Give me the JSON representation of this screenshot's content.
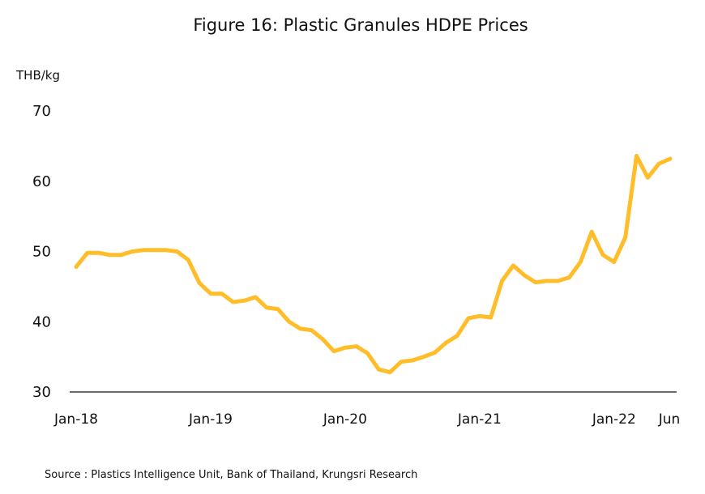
{
  "chart_data": {
    "type": "line",
    "title": "Figure 16: Plastic Granules HDPE Prices",
    "ylabel": "THB/kg",
    "xlabel": "",
    "source": "Source : Plastics Intelligence Unit, Bank of Thailand, Krungsri Research",
    "ylim": [
      30,
      70
    ],
    "yticks": [
      30,
      40,
      50,
      60,
      70
    ],
    "xtick_labels": [
      {
        "label": "Jan-18",
        "index": 0
      },
      {
        "label": "Jan-19",
        "index": 12
      },
      {
        "label": "Jan-20",
        "index": 24
      },
      {
        "label": "Jan-21",
        "index": 36
      },
      {
        "label": "Jan-22",
        "index": 48
      },
      {
        "label": "Jun",
        "index": 53
      }
    ],
    "grid": false,
    "legend": "none",
    "color": "#FFBD2A",
    "x_start": "2018-01",
    "x_end": "2022-06",
    "series": [
      {
        "values": [
          47.8,
          49.8,
          49.8,
          49.5,
          49.5,
          50.0,
          50.2,
          50.2,
          50.2,
          50.0,
          48.8,
          45.5,
          44.0,
          44.0,
          42.8,
          43.0,
          43.5,
          42.0,
          41.8,
          40.0,
          39.0,
          38.8,
          37.5,
          35.8,
          36.3,
          36.5,
          35.5,
          33.2,
          32.8,
          34.3,
          34.5,
          35.0,
          35.6,
          37.0,
          38.0,
          40.5,
          40.8,
          40.6,
          45.8,
          48.0,
          46.6,
          45.6,
          45.8,
          45.8,
          46.3,
          48.5,
          52.8,
          49.5,
          48.5,
          52.0,
          63.6,
          60.5,
          62.5,
          63.2
        ]
      }
    ]
  }
}
